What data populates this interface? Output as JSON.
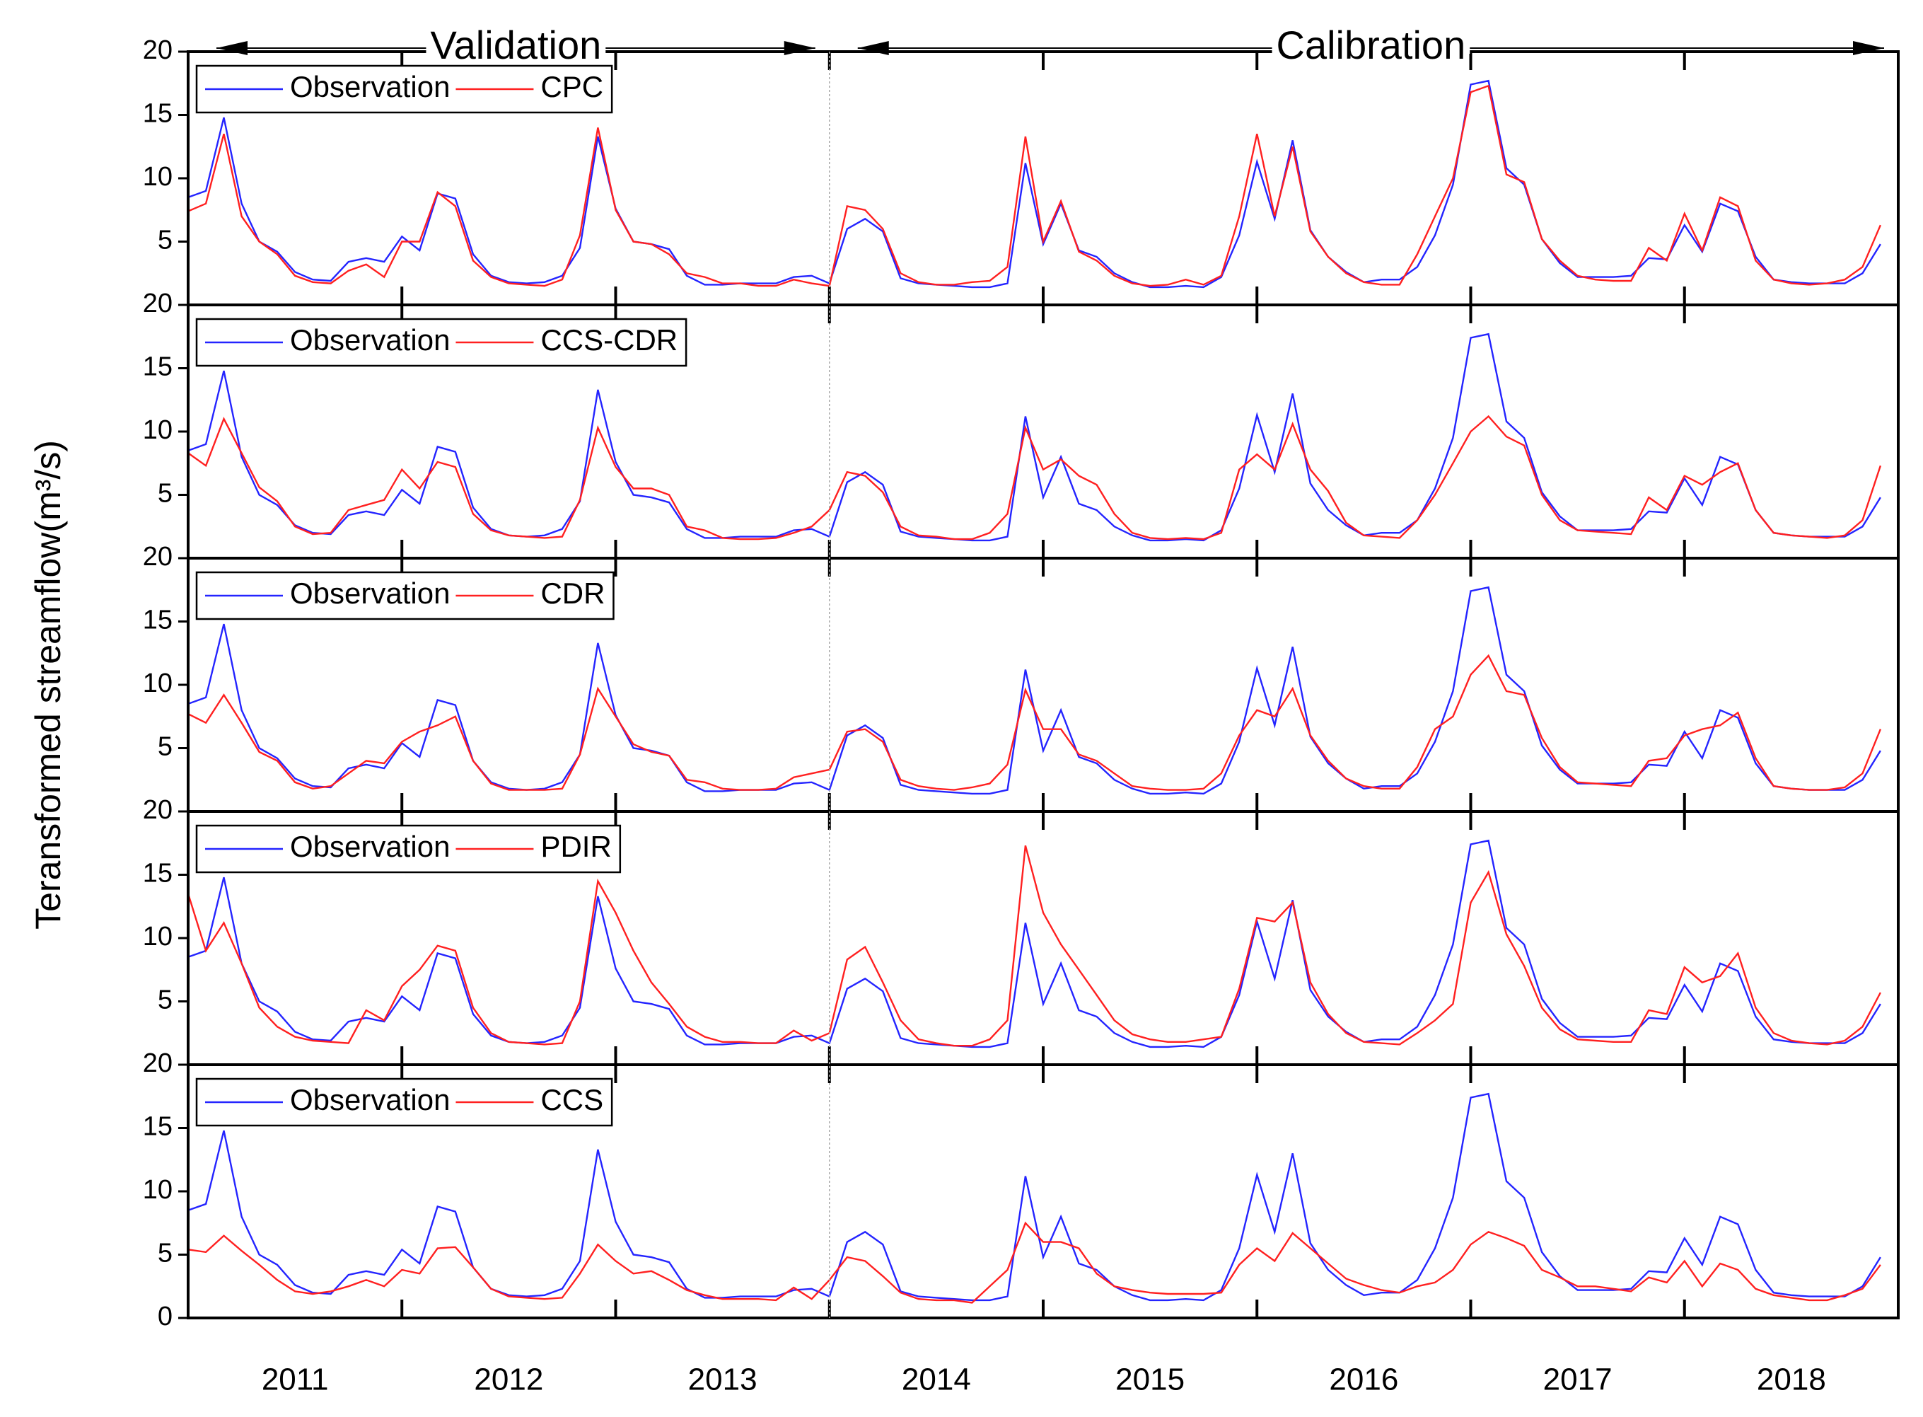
{
  "chart_data": {
    "type": "line",
    "ylabel": "Teransformed streamflow(m³/s)",
    "annotations": [
      {
        "text": "Validation",
        "from": 2011,
        "to": 2014
      },
      {
        "text": "Calibration",
        "from": 2014,
        "to": 2019
      }
    ],
    "x": [
      2011,
      2011.083,
      2011.167,
      2011.25,
      2011.333,
      2011.417,
      2011.5,
      2011.583,
      2011.667,
      2011.75,
      2011.833,
      2011.917,
      2012,
      2012.083,
      2012.167,
      2012.25,
      2012.333,
      2012.417,
      2012.5,
      2012.583,
      2012.667,
      2012.75,
      2012.833,
      2012.917,
      2013,
      2013.083,
      2013.167,
      2013.25,
      2013.333,
      2013.417,
      2013.5,
      2013.583,
      2013.667,
      2013.75,
      2013.833,
      2013.917,
      2014,
      2014.083,
      2014.167,
      2014.25,
      2014.333,
      2014.417,
      2014.5,
      2014.583,
      2014.667,
      2014.75,
      2014.833,
      2014.917,
      2015,
      2015.083,
      2015.167,
      2015.25,
      2015.333,
      2015.417,
      2015.5,
      2015.583,
      2015.667,
      2015.75,
      2015.833,
      2015.917,
      2016,
      2016.083,
      2016.167,
      2016.25,
      2016.333,
      2016.417,
      2016.5,
      2016.583,
      2016.667,
      2016.75,
      2016.833,
      2016.917,
      2017,
      2017.083,
      2017.167,
      2017.25,
      2017.333,
      2017.417,
      2017.5,
      2017.583,
      2017.667,
      2017.75,
      2017.833,
      2017.917,
      2018,
      2018.083,
      2018.167,
      2018.25,
      2018.333,
      2018.417,
      2018.5,
      2018.583,
      2018.667,
      2018.75,
      2018.833,
      2018.917
    ],
    "xlim": [
      2011,
      2019
    ],
    "xticks": [
      2012,
      2013,
      2014,
      2015,
      2016,
      2017,
      2018
    ],
    "xlabels": [
      {
        "value": 2011.5,
        "label": "2011"
      },
      {
        "value": 2012.5,
        "label": "2012"
      },
      {
        "value": 2013.5,
        "label": "2013"
      },
      {
        "value": 2014.5,
        "label": "2014"
      },
      {
        "value": 2015.5,
        "label": "2015"
      },
      {
        "value": 2016.5,
        "label": "2016"
      },
      {
        "value": 2017.5,
        "label": "2017"
      },
      {
        "value": 2018.5,
        "label": "2018"
      }
    ],
    "ylim": [
      0,
      20
    ],
    "yticks": [
      0,
      5,
      10,
      15,
      20
    ],
    "observation": {
      "name": "Observation",
      "color": "#2424ff",
      "values": [
        8.5,
        9,
        14.8,
        8,
        5,
        4.2,
        2.6,
        2.0,
        1.9,
        3.4,
        3.7,
        3.4,
        5.4,
        4.3,
        8.8,
        8.4,
        4,
        2.3,
        1.8,
        1.7,
        1.8,
        2.3,
        4.5,
        13.3,
        7.6,
        5,
        4.8,
        4.4,
        2.3,
        1.6,
        1.6,
        1.7,
        1.7,
        1.7,
        2.2,
        2.3,
        1.7,
        6,
        6.8,
        5.8,
        2.1,
        1.7,
        1.6,
        1.5,
        1.4,
        1.4,
        1.7,
        11.2,
        4.8,
        8.0,
        4.3,
        3.8,
        2.5,
        1.8,
        1.4,
        1.4,
        1.5,
        1.4,
        2.2,
        5.5,
        11.3,
        6.8,
        13.0,
        5.9,
        3.8,
        2.6,
        1.8,
        2.0,
        2.0,
        3.0,
        5.5,
        9.5,
        17.4,
        17.7,
        10.8,
        9.5,
        5.2,
        3.3,
        2.2,
        2.2,
        2.2,
        2.3,
        3.7,
        3.6,
        6.3,
        4.2,
        8.0,
        7.4,
        3.8,
        2.0,
        1.8,
        1.7,
        1.7,
        1.7,
        2.5,
        4.8
      ]
    },
    "panels": [
      {
        "name": "CPC",
        "color": "#ff2020",
        "values": [
          7.4,
          8,
          13.5,
          7,
          5,
          4,
          2.3,
          1.8,
          1.7,
          2.7,
          3.2,
          2.2,
          5,
          5,
          8.9,
          7.8,
          3.5,
          2.2,
          1.7,
          1.6,
          1.5,
          2,
          5.5,
          14,
          7.5,
          5,
          4.8,
          4,
          2.5,
          2.2,
          1.7,
          1.7,
          1.5,
          1.5,
          2,
          1.7,
          1.5,
          7.8,
          7.5,
          6,
          2.5,
          1.8,
          1.6,
          1.6,
          1.8,
          1.9,
          3,
          13.3,
          5,
          8.2,
          4.2,
          3.5,
          2.3,
          1.7,
          1.5,
          1.6,
          2.0,
          1.6,
          2.3,
          7,
          13.5,
          7,
          12.5,
          5.8,
          3.8,
          2.5,
          1.8,
          1.6,
          1.6,
          4,
          7,
          10,
          16.8,
          17.3,
          10.3,
          9.7,
          5.2,
          3.5,
          2.3,
          2,
          1.9,
          1.9,
          4.5,
          3.5,
          7.2,
          4.3,
          8.5,
          7.8,
          3.5,
          2,
          1.7,
          1.6,
          1.7,
          2,
          3,
          6.3
        ]
      },
      {
        "name": "CCS-CDR",
        "color": "#ff2020",
        "values": [
          8.3,
          7.3,
          11,
          8.3,
          5.6,
          4.5,
          2.5,
          1.9,
          2.0,
          3.8,
          4.2,
          4.6,
          7,
          5.5,
          7.6,
          7.2,
          3.5,
          2.2,
          1.8,
          1.7,
          1.6,
          1.7,
          4.6,
          10.3,
          7.2,
          5.5,
          5.5,
          5,
          2.5,
          2.2,
          1.6,
          1.5,
          1.5,
          1.6,
          2,
          2.5,
          3.8,
          6.8,
          6.5,
          5.2,
          2.5,
          1.8,
          1.7,
          1.5,
          1.5,
          2,
          3.5,
          10.3,
          7,
          7.8,
          6.5,
          5.8,
          3.5,
          2,
          1.6,
          1.5,
          1.6,
          1.5,
          2,
          7,
          8.2,
          7,
          10.6,
          7,
          5.3,
          2.8,
          1.8,
          1.7,
          1.6,
          3,
          5,
          7.5,
          10,
          11.2,
          9.6,
          8.9,
          5,
          3,
          2.2,
          2.1,
          2,
          1.9,
          4.8,
          3.8,
          6.5,
          5.8,
          6.8,
          7.5,
          3.8,
          2,
          1.8,
          1.7,
          1.6,
          1.8,
          3,
          7.3
        ]
      },
      {
        "name": "CDR",
        "color": "#ff2020",
        "values": [
          7.7,
          7,
          9.2,
          7,
          4.7,
          4,
          2.3,
          1.8,
          2,
          3,
          4,
          3.8,
          5.5,
          6.3,
          6.8,
          7.5,
          4,
          2.2,
          1.7,
          1.7,
          1.7,
          1.8,
          4.5,
          9.7,
          7.5,
          5.3,
          4.7,
          4.4,
          2.5,
          2.3,
          1.8,
          1.7,
          1.7,
          1.8,
          2.7,
          3,
          3.3,
          6.3,
          6.5,
          5.5,
          2.5,
          2,
          1.8,
          1.7,
          1.9,
          2.2,
          3.7,
          9.6,
          6.5,
          6.5,
          4.5,
          4,
          3,
          2,
          1.8,
          1.7,
          1.7,
          1.8,
          3,
          6,
          8,
          7.5,
          9.7,
          6,
          4,
          2.6,
          2,
          1.8,
          1.8,
          3.5,
          6.5,
          7.5,
          10.8,
          12.3,
          9.5,
          9.2,
          5.8,
          3.5,
          2.3,
          2.2,
          2.1,
          2,
          4,
          4.2,
          6,
          6.5,
          6.8,
          7.8,
          4.2,
          2,
          1.8,
          1.7,
          1.7,
          1.9,
          3,
          6.5
        ]
      },
      {
        "name": "PDIR",
        "color": "#ff2020",
        "values": [
          13.5,
          9,
          11.2,
          8,
          4.5,
          3,
          2.2,
          1.9,
          1.8,
          1.7,
          4.3,
          3.5,
          6.2,
          7.5,
          9.4,
          9,
          4.5,
          2.5,
          1.8,
          1.7,
          1.6,
          1.7,
          5,
          14.5,
          12,
          9,
          6.5,
          4.8,
          3,
          2.2,
          1.8,
          1.8,
          1.7,
          1.7,
          2.7,
          1.9,
          2.5,
          8.3,
          9.3,
          6.5,
          3.5,
          2,
          1.7,
          1.5,
          1.5,
          2,
          3.5,
          17.3,
          12,
          9.5,
          7.5,
          5.5,
          3.5,
          2.4,
          2,
          1.8,
          1.8,
          2,
          2.2,
          6,
          11.6,
          11.3,
          12.8,
          6.5,
          4,
          2.5,
          1.8,
          1.7,
          1.6,
          2.5,
          3.5,
          4.8,
          12.8,
          15.2,
          10.3,
          7.8,
          4.5,
          2.8,
          2,
          1.9,
          1.8,
          1.8,
          4.3,
          4,
          7.7,
          6.5,
          7,
          8.8,
          4.5,
          2.5,
          1.9,
          1.7,
          1.6,
          1.9,
          3,
          5.7
        ]
      },
      {
        "name": "CCS",
        "color": "#ff2020",
        "values": [
          5.4,
          5.2,
          6.5,
          5.3,
          4.2,
          3,
          2.1,
          1.9,
          2.1,
          2.5,
          3,
          2.5,
          3.8,
          3.5,
          5.5,
          5.6,
          4,
          2.3,
          1.7,
          1.6,
          1.5,
          1.6,
          3.5,
          5.8,
          4.5,
          3.5,
          3.7,
          3,
          2.2,
          1.8,
          1.5,
          1.5,
          1.5,
          1.4,
          2.4,
          1.5,
          3,
          4.8,
          4.5,
          3.3,
          2,
          1.5,
          1.4,
          1.4,
          1.2,
          2.5,
          3.8,
          7.5,
          6,
          6,
          5.5,
          3.5,
          2.5,
          2.2,
          2,
          1.9,
          1.9,
          1.9,
          2,
          4.2,
          5.5,
          4.5,
          6.7,
          5.5,
          4.3,
          3.1,
          2.6,
          2.2,
          2,
          2.5,
          2.8,
          3.8,
          5.8,
          6.8,
          6.3,
          5.7,
          3.8,
          3.2,
          2.5,
          2.5,
          2.3,
          2.1,
          3.2,
          2.8,
          4.5,
          2.5,
          4.3,
          3.8,
          2.3,
          1.8,
          1.6,
          1.4,
          1.4,
          1.8,
          2.3,
          4.2
        ]
      }
    ]
  }
}
